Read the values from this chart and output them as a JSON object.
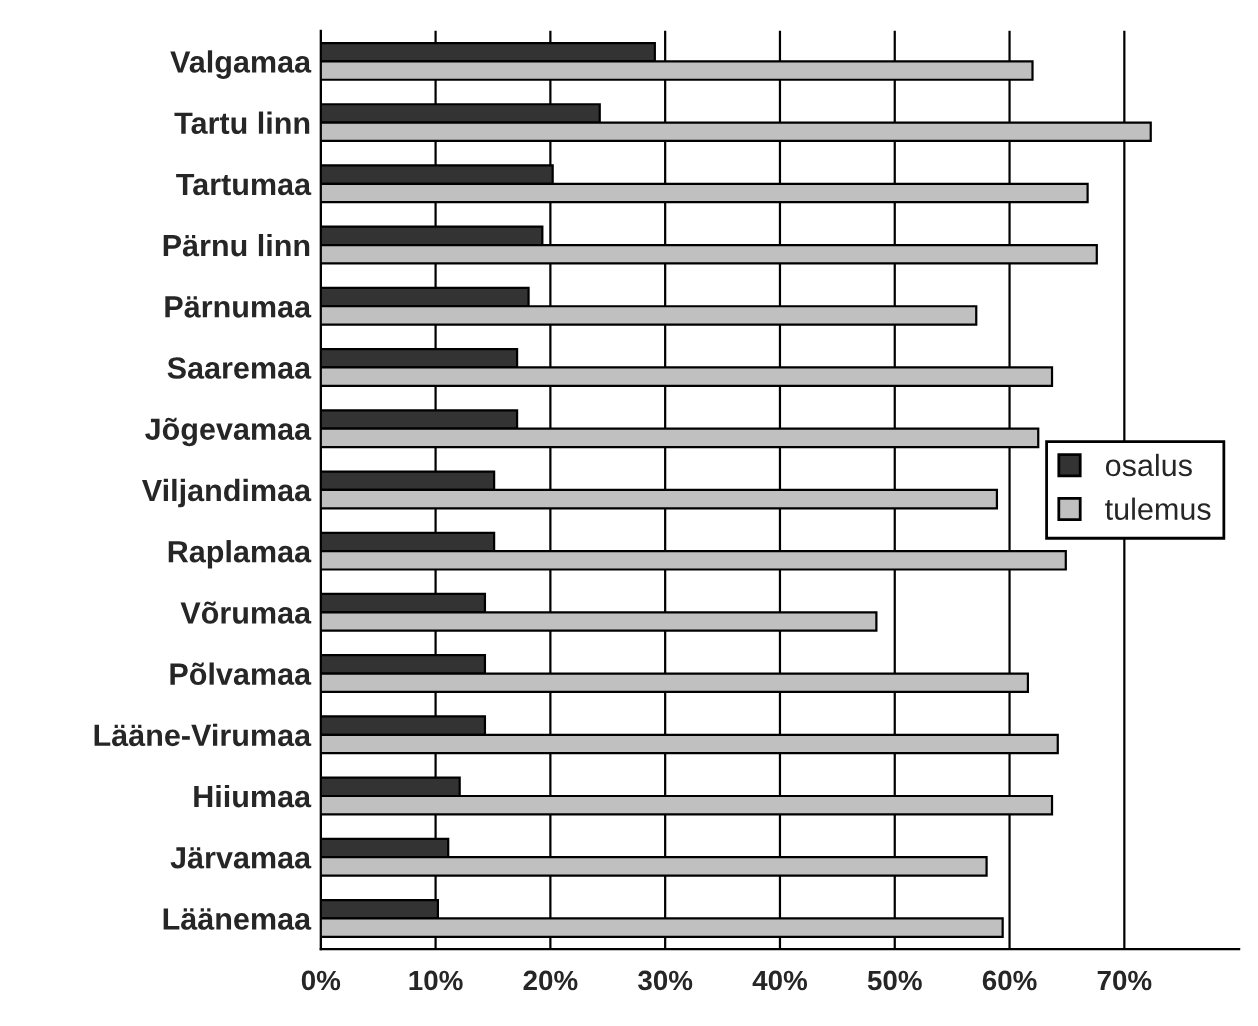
{
  "chart_data": {
    "type": "bar",
    "orientation": "horizontal",
    "categories": [
      "Valgamaa",
      "Tartu linn",
      "Tartumaa",
      "Pärnu linn",
      "Pärnumaa",
      "Saaremaa",
      "Jõgevamaa",
      "Viljandimaa",
      "Raplamaa",
      "Võrumaa",
      "Põlvamaa",
      "Lääne-Virumaa",
      "Hiiumaa",
      "Järvamaa",
      "Läänemaa"
    ],
    "series": [
      {
        "name": "osalus",
        "color": "#333333",
        "values": [
          29.1,
          24.3,
          20.2,
          19.3,
          18.1,
          17.1,
          17.1,
          15.1,
          15.1,
          14.3,
          14.3,
          14.3,
          12.1,
          11.1,
          10.2
        ]
      },
      {
        "name": "tulemus",
        "color": "#c0c0c0",
        "values": [
          62.0,
          72.3,
          66.8,
          67.6,
          57.1,
          63.7,
          62.5,
          58.9,
          64.9,
          48.4,
          61.6,
          64.2,
          63.7,
          58.0,
          59.4
        ]
      }
    ],
    "xlim": [
      0,
      80
    ],
    "xticks": [
      {
        "value": 0,
        "label": "0%"
      },
      {
        "value": 10,
        "label": "10%"
      },
      {
        "value": 20,
        "label": "20%"
      },
      {
        "value": 30,
        "label": "30%"
      },
      {
        "value": 40,
        "label": "40%"
      },
      {
        "value": 50,
        "label": "50%"
      },
      {
        "value": 60,
        "label": "60%"
      },
      {
        "value": 70,
        "label": "70%"
      }
    ],
    "grid": "x",
    "legend": "right"
  }
}
